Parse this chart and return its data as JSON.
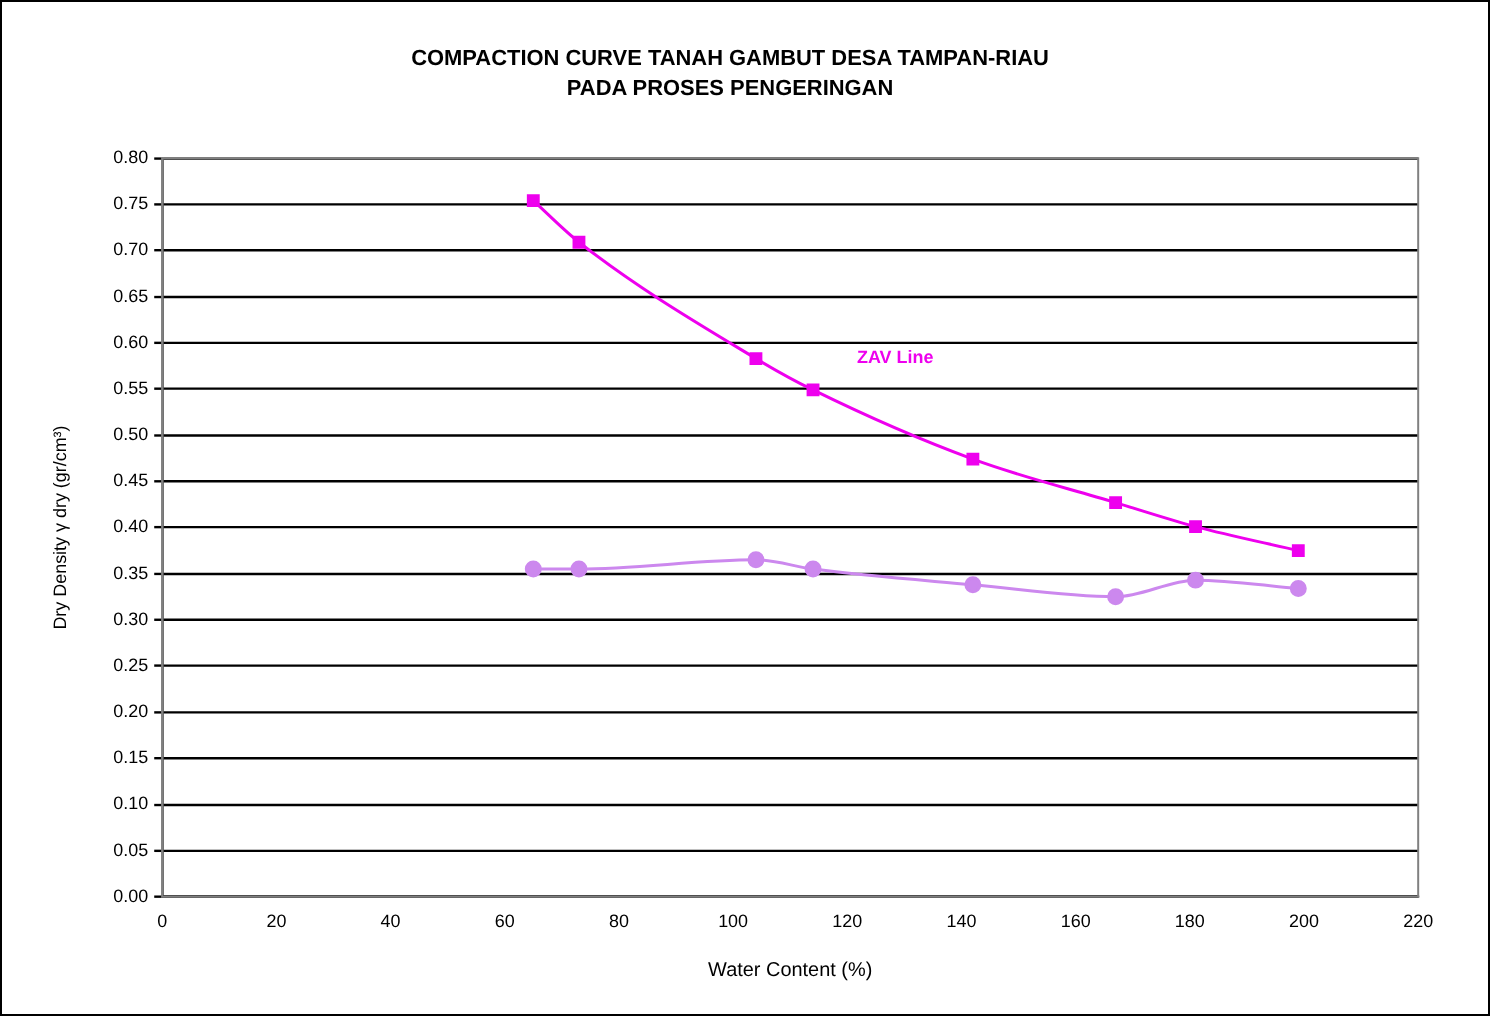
{
  "chart_data": {
    "type": "line",
    "title": "COMPACTION CURVE TANAH GAMBUT DESA TAMPAN-RIAU",
    "subtitle": "PADA PROSES PENGERINGAN",
    "xlabel": "Water Content (%)",
    "ylabel": "Dry Density γ dry (gr/cm³)",
    "x": [
      65,
      73,
      104,
      114,
      142,
      167,
      181,
      199
    ],
    "series": [
      {
        "name": "ZAV Line",
        "color": "#ee00ee",
        "marker": "square",
        "values": [
          0.754,
          0.709,
          0.583,
          0.549,
          0.474,
          0.427,
          0.401,
          0.375
        ]
      },
      {
        "color": "#cc88ee",
        "marker": "circle",
        "values": [
          0.355,
          0.355,
          0.365,
          0.355,
          0.338,
          0.325,
          0.343,
          0.334
        ]
      }
    ],
    "xlim": [
      0,
      220
    ],
    "xticks": [
      0,
      20,
      40,
      60,
      80,
      100,
      120,
      140,
      160,
      180,
      200,
      220
    ],
    "ylim": [
      0,
      0.8
    ],
    "yticks": [
      {
        "value": 0,
        "label": "0.00"
      },
      {
        "value": 0.05,
        "label": "0.05"
      },
      {
        "value": 0.1,
        "label": "0.10"
      },
      {
        "value": 0.15,
        "label": "0.15"
      },
      {
        "value": 0.2,
        "label": "0.20"
      },
      {
        "value": 0.25,
        "label": "0.25"
      },
      {
        "value": 0.3,
        "label": "0.30"
      },
      {
        "value": 0.35,
        "label": "0.35"
      },
      {
        "value": 0.4,
        "label": "0.40"
      },
      {
        "value": 0.45,
        "label": "0.45"
      },
      {
        "value": 0.5,
        "label": "0.50"
      },
      {
        "value": 0.55,
        "label": "0.55"
      },
      {
        "value": 0.6,
        "label": "0.60"
      },
      {
        "value": 0.65,
        "label": "0.65"
      },
      {
        "value": 0.7,
        "label": "0.70"
      },
      {
        "value": 0.75,
        "label": "0.75"
      },
      {
        "value": 0.8,
        "label": "0.80"
      }
    ],
    "grid": "y",
    "legend": false,
    "line_style": "solid"
  }
}
